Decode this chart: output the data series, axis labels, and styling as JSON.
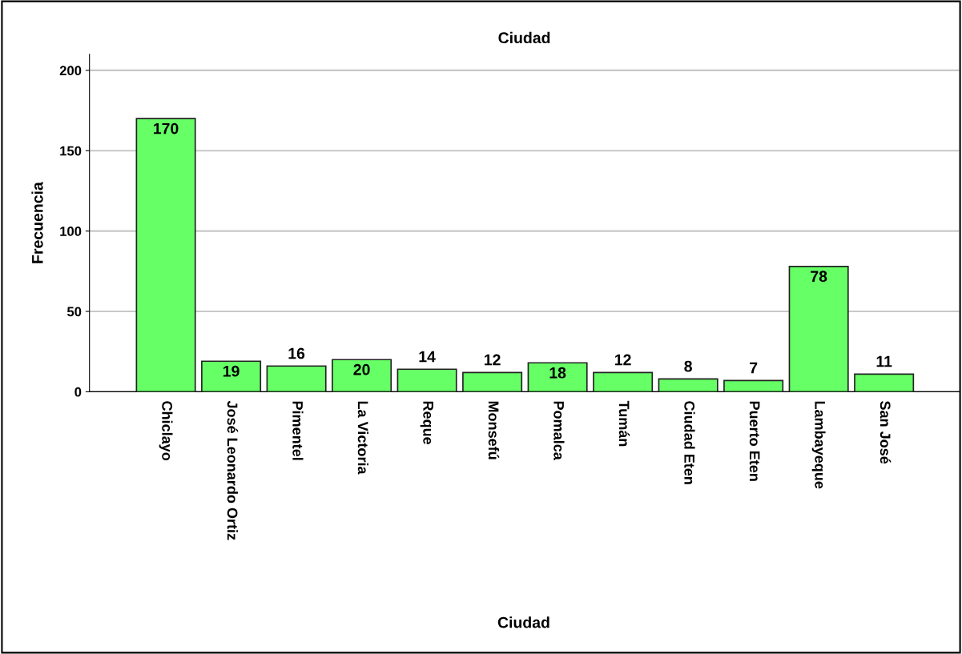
{
  "chart_data": {
    "type": "bar",
    "title": "Ciudad",
    "xlabel": "Ciudad",
    "ylabel": "Frecuencia",
    "categories": [
      "Chiclayo",
      "José Leonardo Ortiz",
      "Pimentel",
      "La Victoria",
      "Reque",
      "Monsefú",
      "Pomalca",
      "Tumán",
      "Ciudad Eten",
      "Puerto Eten",
      "Lambayeque",
      "San José"
    ],
    "values": [
      170,
      19,
      16,
      20,
      14,
      12,
      18,
      12,
      8,
      7,
      78,
      11
    ],
    "color": "#66ff66",
    "ylim": [
      0,
      210
    ],
    "yticks": [
      0,
      50,
      100,
      150,
      200
    ],
    "grid": "y",
    "data_labels": true
  }
}
